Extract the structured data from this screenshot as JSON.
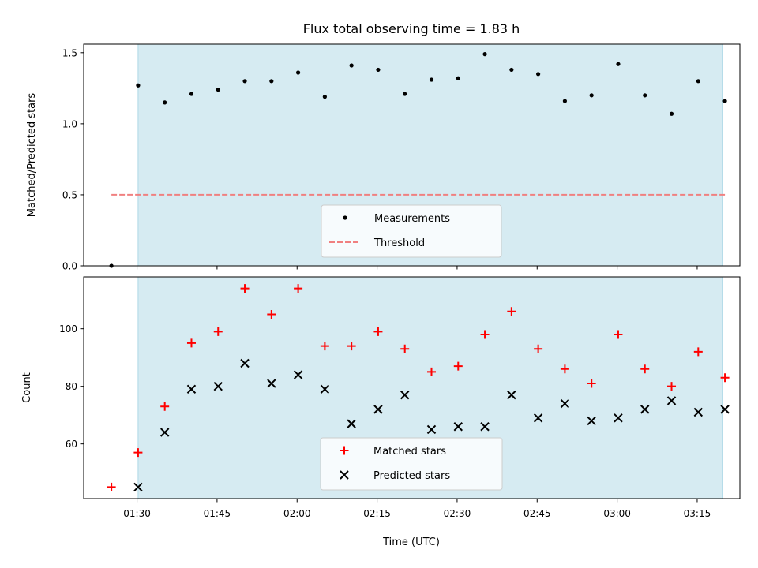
{
  "chart_data": {
    "title": "Flux total observing time = 1.83 h",
    "xlabel": "Time (UTC)",
    "x_ticks": [
      "01:30",
      "01:45",
      "02:00",
      "02:15",
      "02:30",
      "02:45",
      "03:00",
      "03:15"
    ],
    "x_tick_minutes": [
      90,
      105,
      120,
      135,
      150,
      165,
      180,
      195
    ],
    "xlim_minutes": [
      80,
      203
    ],
    "shaded_region_minutes": [
      90.2,
      199.8
    ],
    "colors": {
      "shade": "#add8e6",
      "matched": "#ff0000",
      "predicted": "#000000",
      "measurement": "#000000",
      "threshold": "#f08080"
    },
    "panels": [
      {
        "type": "scatter",
        "ylabel": "Matched/Predicted stars",
        "ylim": [
          0,
          1.56
        ],
        "y_ticks": [
          "0.0",
          "0.5",
          "1.0",
          "1.5"
        ],
        "y_tick_values": [
          0.0,
          0.5,
          1.0,
          1.5
        ],
        "legend_location": "lower center",
        "series": [
          {
            "name": "Measurements",
            "marker": "dot",
            "x": [
              85.2,
              90.2,
              95.2,
              100.2,
              105.2,
              110.2,
              115.2,
              120.2,
              125.2,
              130.2,
              135.2,
              140.2,
              145.2,
              150.2,
              155.2,
              160.2,
              165.2,
              170.2,
              175.2,
              180.2,
              185.2,
              190.2,
              195.2,
              200.2
            ],
            "y": [
              0.0,
              1.27,
              1.15,
              1.21,
              1.24,
              1.3,
              1.3,
              1.36,
              1.19,
              1.41,
              1.38,
              1.21,
              1.31,
              1.32,
              1.49,
              1.38,
              1.35,
              1.16,
              1.2,
              1.42,
              1.2,
              1.07,
              1.3,
              1.16
            ]
          },
          {
            "name": "Threshold",
            "marker": "dashed-line",
            "x": [
              85.2,
              200.2
            ],
            "y": [
              0.5,
              0.5
            ]
          }
        ]
      },
      {
        "type": "scatter",
        "ylabel": "Count",
        "ylim": [
          41,
          118
        ],
        "y_ticks": [
          "60",
          "80",
          "100"
        ],
        "y_tick_values": [
          60,
          80,
          100
        ],
        "legend_location": "lower center",
        "series": [
          {
            "name": "Matched stars",
            "marker": "plus",
            "x": [
              85.2,
              90.2,
              95.2,
              100.2,
              105.2,
              110.2,
              115.2,
              120.2,
              125.2,
              130.2,
              135.2,
              140.2,
              145.2,
              150.2,
              155.2,
              160.2,
              165.2,
              170.2,
              175.2,
              180.2,
              185.2,
              190.2,
              195.2,
              200.2
            ],
            "y": [
              45,
              57,
              73,
              95,
              99,
              114,
              105,
              114,
              94,
              94,
              99,
              93,
              85,
              87,
              98,
              106,
              93,
              86,
              81,
              98,
              86,
              80,
              92,
              83
            ]
          },
          {
            "name": "Predicted stars",
            "marker": "x",
            "x": [
              90.2,
              95.2,
              100.2,
              105.2,
              110.2,
              115.2,
              120.2,
              125.2,
              130.2,
              135.2,
              140.2,
              145.2,
              150.2,
              155.2,
              160.2,
              165.2,
              170.2,
              175.2,
              180.2,
              185.2,
              190.2,
              195.2,
              200.2
            ],
            "y": [
              45,
              64,
              79,
              80,
              88,
              81,
              84,
              79,
              67,
              72,
              77,
              65,
              66,
              66,
              77,
              69,
              74,
              68,
              69,
              72,
              75,
              71,
              72
            ]
          }
        ]
      }
    ]
  }
}
